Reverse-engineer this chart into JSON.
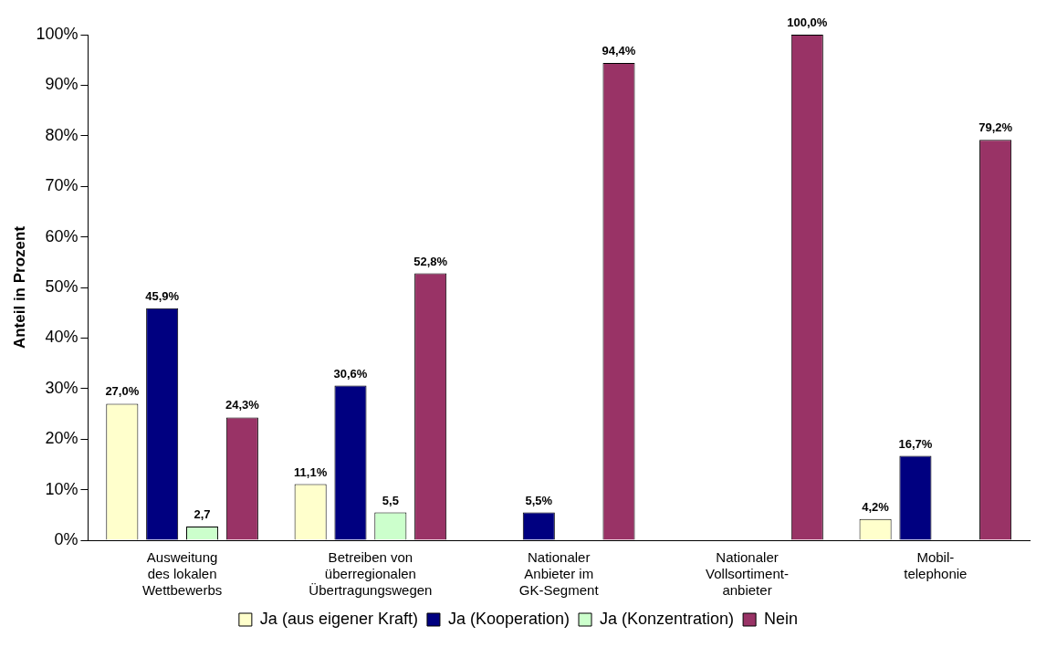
{
  "chart_data": {
    "type": "bar",
    "ylabel": "Anteil in Prozent",
    "categories": [
      "Ausweitung\ndes lokalen\nWettbewerbs",
      "Betreiben von\nüberregionalen\nÜbertragungswegen",
      "Nationaler\nAnbieter im\nGK-Segment",
      "Nationaler\nVollsortiment-\nanbieter",
      "Mobil-\ntelephonie"
    ],
    "series": [
      {
        "name": "Ja (aus eigener Kraft)",
        "color": "#ffffcc",
        "values": [
          27.0,
          11.1,
          0,
          0,
          4.2
        ],
        "value_labels": [
          "27,0%",
          "11,1%",
          null,
          null,
          "4,2%"
        ]
      },
      {
        "name": "Ja (Kooperation)",
        "color": "#000080",
        "values": [
          45.9,
          30.6,
          5.5,
          0,
          16.7
        ],
        "value_labels": [
          "45,9%",
          "30,6%",
          "5,5%",
          null,
          "16,7%"
        ]
      },
      {
        "name": "Ja (Konzentration)",
        "color": "#ccffcc",
        "values": [
          2.7,
          5.5,
          0,
          0,
          0
        ],
        "value_labels": [
          "2,7",
          "5,5",
          null,
          null,
          null
        ]
      },
      {
        "name": "Nein",
        "color": "#993366",
        "values": [
          24.3,
          52.8,
          94.4,
          100.0,
          79.2
        ],
        "value_labels": [
          "24,3%",
          "52,8%",
          "94,4%",
          "100,0%",
          "79,2%"
        ]
      }
    ],
    "ylim": [
      0,
      100
    ],
    "yticks": [
      {
        "value": 0,
        "label": "0%"
      },
      {
        "value": 10,
        "label": "10%"
      },
      {
        "value": 20,
        "label": "20%"
      },
      {
        "value": 30,
        "label": "30%"
      },
      {
        "value": 40,
        "label": "40%"
      },
      {
        "value": 50,
        "label": "50%"
      },
      {
        "value": 60,
        "label": "60%"
      },
      {
        "value": 70,
        "label": "70%"
      },
      {
        "value": 80,
        "label": "80%"
      },
      {
        "value": 90,
        "label": "90%"
      },
      {
        "value": 100,
        "label": "100%"
      }
    ],
    "grid": false,
    "legend": "bottom"
  }
}
